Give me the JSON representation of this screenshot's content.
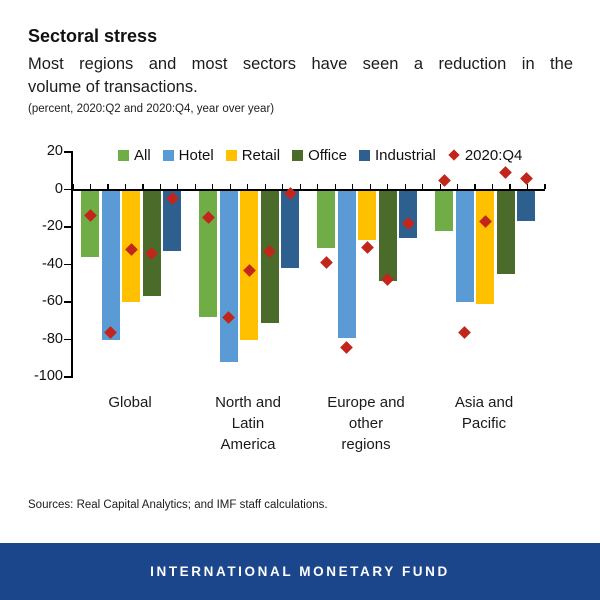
{
  "header": {
    "title": "Sectoral stress",
    "subtitle_line1": "Most regions and most sectors have seen a reduction in the",
    "subtitle_line2": "volume of transactions.",
    "unit_note": "(percent, 2020:Q2 and 2020:Q4, year over year)"
  },
  "chart_data": {
    "type": "bar",
    "title": "Sectoral stress",
    "unit": "percent, 2020:Q2 and 2020:Q4, year over year",
    "categories": [
      "Global",
      "North and Latin America",
      "Europe and other regions",
      "Asia and Pacific"
    ],
    "category_display_lines": [
      [
        "Global"
      ],
      [
        "North and",
        "Latin",
        "America"
      ],
      [
        "Europe and",
        "other",
        "regions"
      ],
      [
        "Asia and",
        "Pacific"
      ]
    ],
    "ylim": [
      -100,
      20
    ],
    "yticks": [
      20,
      0,
      -20,
      -40,
      -60,
      -80,
      -100
    ],
    "grid": false,
    "legend_position": "top",
    "series": [
      {
        "name": "All",
        "color": "#70AD47",
        "values": [
          -36,
          -68,
          -31,
          -22
        ],
        "q4_values": [
          -14,
          -15,
          -39,
          5
        ]
      },
      {
        "name": "Hotel",
        "color": "#5B9BD5",
        "values": [
          -80,
          -92,
          -79,
          -60
        ],
        "q4_values": [
          -76,
          -68,
          -84,
          -76
        ]
      },
      {
        "name": "Retail",
        "color": "#FFC000",
        "values": [
          -60,
          -80,
          -27,
          -61
        ],
        "q4_values": [
          -32,
          -43,
          -31,
          -17
        ]
      },
      {
        "name": "Office",
        "color": "#4A6B2A",
        "values": [
          -57,
          -71,
          -49,
          -45
        ],
        "q4_values": [
          -34,
          -33,
          -48,
          9
        ]
      },
      {
        "name": "Industrial",
        "color": "#2D608F",
        "values": [
          -33,
          -42,
          -26,
          -17
        ],
        "q4_values": [
          -5,
          -2,
          -18,
          6
        ]
      }
    ],
    "marker_series": {
      "name": "2020:Q4",
      "color": "#C2261B",
      "shape": "diamond"
    },
    "axis_color": "#000000"
  },
  "footer": {
    "sources": "Sources: Real Capital Analytics; and IMF staff calculations.",
    "bar_text": "INTERNATIONAL MONETARY FUND",
    "bar_color": "#1B468C"
  }
}
